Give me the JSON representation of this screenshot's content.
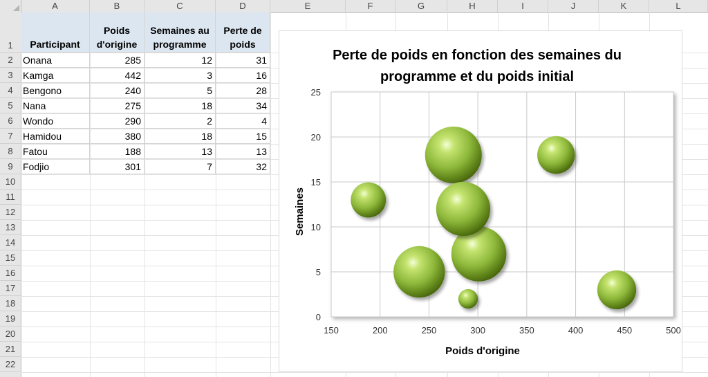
{
  "columns": [
    "A",
    "B",
    "C",
    "D",
    "E",
    "F",
    "G",
    "H",
    "I",
    "J",
    "K",
    "L"
  ],
  "rows": [
    "1",
    "2",
    "3",
    "4",
    "5",
    "6",
    "7",
    "8",
    "9",
    "10",
    "11",
    "12",
    "13",
    "14",
    "15",
    "16",
    "17",
    "18",
    "19",
    "20",
    "21",
    "22"
  ],
  "table": {
    "headers": [
      "Participant",
      "Poids d'origine",
      "Semaines au programme",
      "Perte de poids"
    ],
    "rows": [
      [
        "Onana",
        "285",
        "12",
        "31"
      ],
      [
        "Kamga",
        "442",
        "3",
        "16"
      ],
      [
        "Bengono",
        "240",
        "5",
        "28"
      ],
      [
        "Nana",
        "275",
        "18",
        "34"
      ],
      [
        "Wondo",
        "290",
        "2",
        "4"
      ],
      [
        "Hamidou",
        "380",
        "18",
        "15"
      ],
      [
        "Fatou",
        "188",
        "13",
        "13"
      ],
      [
        "Fodjio",
        "301",
        "7",
        "32"
      ]
    ]
  },
  "chart_data": {
    "type": "scatter",
    "subtype": "bubble",
    "title": "Perte de poids en fonction des semaines du programme et du poids initial",
    "title_lines": [
      "Perte de poids en fonction des semaines du",
      "programme et du poids initial"
    ],
    "xlabel": "Poids d'origine",
    "ylabel": "Semaines",
    "xlim": [
      150,
      500
    ],
    "ylim": [
      0,
      25
    ],
    "xticks": [
      "150",
      "200",
      "250",
      "300",
      "350",
      "400",
      "450",
      "500"
    ],
    "yticks": [
      "0",
      "5",
      "10",
      "15",
      "20",
      "25"
    ],
    "grid": true,
    "bubble_color": "#8db83a",
    "points": [
      {
        "x": 285,
        "y": 12,
        "size": 31
      },
      {
        "x": 442,
        "y": 3,
        "size": 16
      },
      {
        "x": 240,
        "y": 5,
        "size": 28
      },
      {
        "x": 275,
        "y": 18,
        "size": 34
      },
      {
        "x": 290,
        "y": 2,
        "size": 4
      },
      {
        "x": 380,
        "y": 18,
        "size": 15
      },
      {
        "x": 188,
        "y": 13,
        "size": 13
      },
      {
        "x": 301,
        "y": 7,
        "size": 32
      }
    ]
  }
}
